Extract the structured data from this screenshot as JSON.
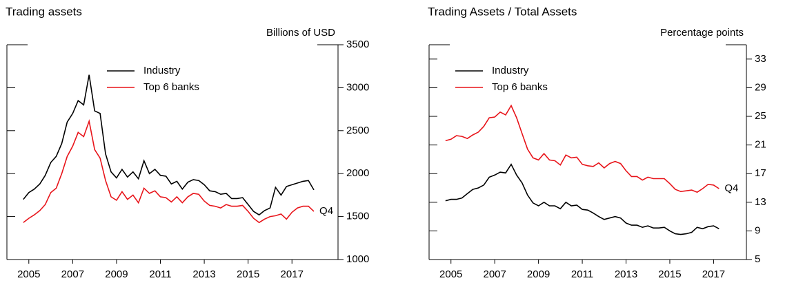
{
  "chart_data": [
    {
      "type": "line",
      "title": "Trading assets",
      "y_label": "Billions of USD",
      "annotation": "Q4",
      "x": [
        2004.75,
        2005,
        2005.25,
        2005.5,
        2005.75,
        2006,
        2006.25,
        2006.5,
        2006.75,
        2007,
        2007.25,
        2007.5,
        2007.75,
        2008,
        2008.25,
        2008.5,
        2008.75,
        2009,
        2009.25,
        2009.5,
        2009.75,
        2010,
        2010.25,
        2010.5,
        2010.75,
        2011,
        2011.25,
        2011.5,
        2011.75,
        2012,
        2012.25,
        2012.5,
        2012.75,
        2013,
        2013.25,
        2013.5,
        2013.75,
        2014,
        2014.25,
        2014.5,
        2014.75,
        2015,
        2015.25,
        2015.5,
        2015.75,
        2016,
        2016.25,
        2016.5,
        2016.75,
        2017,
        2017.25,
        2017.5,
        2017.75,
        2018
      ],
      "series": [
        {
          "name": "Industry",
          "color": "#000000",
          "values": [
            1700,
            1780,
            1820,
            1880,
            1980,
            2130,
            2200,
            2350,
            2600,
            2700,
            2850,
            2800,
            3150,
            2730,
            2700,
            2230,
            2020,
            1950,
            2050,
            1960,
            2020,
            1940,
            2150,
            2000,
            2050,
            1980,
            1970,
            1880,
            1910,
            1820,
            1900,
            1930,
            1920,
            1870,
            1800,
            1790,
            1760,
            1770,
            1710,
            1710,
            1720,
            1640,
            1560,
            1520,
            1570,
            1600,
            1840,
            1750,
            1850,
            1870,
            1890,
            1910,
            1920,
            1810
          ]
        },
        {
          "name": "Top 6 banks",
          "color": "#e8141a",
          "values": [
            1430,
            1480,
            1520,
            1570,
            1640,
            1780,
            1830,
            2000,
            2200,
            2320,
            2480,
            2430,
            2610,
            2280,
            2180,
            1920,
            1730,
            1690,
            1790,
            1700,
            1750,
            1660,
            1830,
            1770,
            1800,
            1730,
            1720,
            1670,
            1730,
            1660,
            1730,
            1770,
            1760,
            1680,
            1630,
            1620,
            1600,
            1640,
            1620,
            1620,
            1630,
            1560,
            1480,
            1430,
            1470,
            1500,
            1510,
            1530,
            1470,
            1550,
            1600,
            1620,
            1620,
            1560
          ]
        }
      ],
      "xlim": [
        2004,
        2019.1
      ],
      "xticks": [
        2005,
        2007,
        2009,
        2011,
        2013,
        2015,
        2017
      ],
      "ylim": [
        1000,
        3500
      ],
      "yticks": [
        1000,
        1500,
        2000,
        2500,
        3000,
        3500
      ]
    },
    {
      "type": "line",
      "title": "Trading Assets / Total Assets",
      "y_label": "Percentage points",
      "annotation": "Q4",
      "x": [
        2004.75,
        2005,
        2005.25,
        2005.5,
        2005.75,
        2006,
        2006.25,
        2006.5,
        2006.75,
        2007,
        2007.25,
        2007.5,
        2007.75,
        2008,
        2008.25,
        2008.5,
        2008.75,
        2009,
        2009.25,
        2009.5,
        2009.75,
        2010,
        2010.25,
        2010.5,
        2010.75,
        2011,
        2011.25,
        2011.5,
        2011.75,
        2012,
        2012.25,
        2012.5,
        2012.75,
        2013,
        2013.25,
        2013.5,
        2013.75,
        2014,
        2014.25,
        2014.5,
        2014.75,
        2015,
        2015.25,
        2015.5,
        2015.75,
        2016,
        2016.25,
        2016.5,
        2016.75,
        2017,
        2017.25
      ],
      "series": [
        {
          "name": "Industry",
          "color": "#000000",
          "values": [
            13.2,
            13.4,
            13.4,
            13.6,
            14.2,
            14.8,
            15.0,
            15.4,
            16.5,
            16.8,
            17.2,
            17.1,
            18.3,
            16.8,
            15.7,
            14.0,
            12.9,
            12.5,
            13.0,
            12.5,
            12.5,
            12.1,
            13.0,
            12.5,
            12.6,
            12.0,
            11.9,
            11.5,
            11.0,
            10.6,
            10.8,
            11.0,
            10.8,
            10.1,
            9.8,
            9.8,
            9.5,
            9.7,
            9.4,
            9.4,
            9.5,
            9.0,
            8.6,
            8.5,
            8.6,
            8.8,
            9.5,
            9.3,
            9.6,
            9.7,
            9.3
          ]
        },
        {
          "name": "Top 6 banks",
          "color": "#e8141a",
          "values": [
            21.6,
            21.8,
            22.3,
            22.2,
            21.9,
            22.4,
            22.8,
            23.6,
            24.8,
            24.9,
            25.6,
            25.2,
            26.5,
            24.8,
            22.6,
            20.4,
            19.2,
            18.9,
            19.8,
            18.9,
            18.8,
            18.2,
            19.6,
            19.2,
            19.3,
            18.3,
            18.1,
            18.0,
            18.5,
            17.8,
            18.4,
            18.7,
            18.4,
            17.4,
            16.6,
            16.6,
            16.1,
            16.5,
            16.3,
            16.3,
            16.3,
            15.6,
            14.8,
            14.5,
            14.6,
            14.7,
            14.4,
            14.9,
            15.5,
            15.4,
            14.9
          ]
        }
      ],
      "xlim": [
        2004,
        2018.5
      ],
      "xticks": [
        2005,
        2007,
        2009,
        2011,
        2013,
        2015,
        2017
      ],
      "ylim": [
        5,
        35
      ],
      "yticks": [
        5,
        9,
        13,
        17,
        21,
        25,
        29,
        33
      ]
    }
  ]
}
